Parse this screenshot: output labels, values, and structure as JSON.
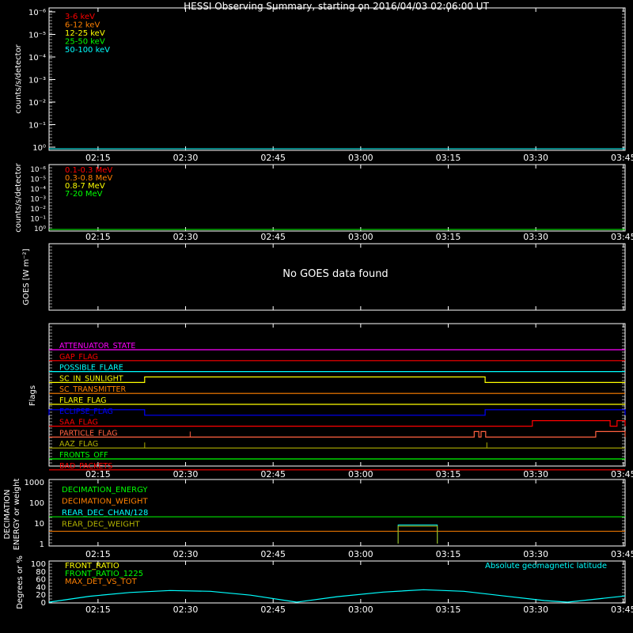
{
  "title": "HESSI Observing Summary, starting on 2016/04/03 02:06:00 UT",
  "time_ticks": [
    "02:15",
    "02:30",
    "02:45",
    "03:00",
    "03:15",
    "03:30",
    "03:45"
  ],
  "colors": {
    "red": "#ff0000",
    "orange": "#ff8000",
    "yellow": "#ffff00",
    "green": "#00ff00",
    "cyan": "#00ffff",
    "magenta": "#ff00ff",
    "blue": "#0000ff",
    "white": "#ffffff",
    "olive": "#b0b000",
    "lightorange": "#ff6040"
  },
  "chart_data": [
    {
      "type": "line",
      "id": "lightcurve-low",
      "ylabel": "counts/s/detector",
      "ytick_labels": [
        "10⁰",
        "10⁻¹",
        "10⁻²",
        "10⁻³",
        "10⁻⁴",
        "10⁻⁵",
        "10⁻⁶"
      ],
      "log_scale": true,
      "series": [
        {
          "name": "3-6 keV",
          "color": "red",
          "values": []
        },
        {
          "name": "6-12 keV",
          "color": "orange",
          "values": []
        },
        {
          "name": "12-25 keV",
          "color": "yellow",
          "values": []
        },
        {
          "name": "25-50 keV",
          "color": "green",
          "values": []
        },
        {
          "name": "50-100 keV",
          "color": "cyan",
          "values": []
        }
      ]
    },
    {
      "type": "line",
      "id": "lightcurve-high",
      "ylabel": "counts/s/detector",
      "ytick_labels": [
        "10⁰",
        "10⁻¹",
        "10⁻²",
        "10⁻³",
        "10⁻⁴",
        "10⁻⁵",
        "10⁻⁶"
      ],
      "log_scale": true,
      "series": [
        {
          "name": "0.1-0.3 MeV",
          "color": "red",
          "values": []
        },
        {
          "name": "0.3-0.8 MeV",
          "color": "orange",
          "values": []
        },
        {
          "name": "0.8-7 MeV",
          "color": "yellow",
          "values": []
        },
        {
          "name": "7-20 MeV",
          "color": "green",
          "values": []
        }
      ]
    },
    {
      "type": "line",
      "id": "goes",
      "ylabel": "GOES [W m⁻²]",
      "message": "No GOES data found"
    },
    {
      "type": "line",
      "id": "flags",
      "ylabel": "Flags",
      "series": [
        {
          "name": "ATTENUATOR_STATE",
          "color": "magenta"
        },
        {
          "name": "GAP_FLAG",
          "color": "red"
        },
        {
          "name": "POSSIBLE_FLARE",
          "color": "cyan"
        },
        {
          "name": "SC_IN_SUNLIGHT",
          "color": "yellow",
          "on": [
            [
              0.166,
              0.757
            ]
          ]
        },
        {
          "name": "SC_TRANSMITTER",
          "color": "orange"
        },
        {
          "name": "FLARE_FLAG",
          "color": "yellow"
        },
        {
          "name": "ECLIPSE_FLAG",
          "color": "blue",
          "on": [
            [
              0.0,
              0.166
            ],
            [
              0.757,
              1.0
            ]
          ]
        },
        {
          "name": "SAA_FLAG",
          "color": "red",
          "on": [
            [
              0.839,
              0.974
            ],
            [
              0.986,
              1.0
            ]
          ]
        },
        {
          "name": "PARTICLE_FLAG",
          "color": "lightorange",
          "on": [
            [
              0.738,
              0.746
            ],
            [
              0.75,
              0.758
            ],
            [
              0.949,
              1.0
            ]
          ],
          "spikes": [
            0.245
          ]
        },
        {
          "name": "AAZ_FLAG",
          "color": "olive",
          "spikes": [
            0.166,
            0.76
          ]
        },
        {
          "name": "FRONTS_OFF",
          "color": "green"
        },
        {
          "name": "BAD_PACKETS",
          "color": "red"
        }
      ]
    },
    {
      "type": "line",
      "id": "decimation",
      "ylabel": "DECIMATION ENERGY or weight",
      "ytick_labels": [
        "1",
        "10",
        "100",
        "1000"
      ],
      "log_scale": true,
      "series": [
        {
          "name": "DECIMATION_ENERGY",
          "color": "green",
          "values": [
            [
              0,
              20
            ],
            [
              1,
              20
            ]
          ]
        },
        {
          "name": "DECIMATION_WEIGHT",
          "color": "orange",
          "values": [
            [
              0,
              4
            ],
            [
              1,
              4
            ]
          ]
        },
        {
          "name": "REAR_DEC_CHAN/128",
          "color": "cyan",
          "box": [
            0.606,
            0.674,
            1,
            8
          ]
        },
        {
          "name": "REAR_DEC_WEIGHT",
          "color": "olive",
          "box": [
            0.606,
            0.674,
            1,
            7
          ]
        }
      ]
    },
    {
      "type": "line",
      "id": "ratio",
      "ylabel": "Degrees or %",
      "ytick_labels": [
        "0",
        "20",
        "40",
        "60",
        "80",
        "100"
      ],
      "ylim": [
        0,
        100
      ],
      "annotation": "Absolute geomagnetic latitude",
      "series": [
        {
          "name": "FRONT_RATIO",
          "color": "yellow",
          "values": []
        },
        {
          "name": "FRONT_RATIO_1225",
          "color": "green",
          "values": []
        },
        {
          "name": "MAX_DET_VS_TOT",
          "color": "orange",
          "values": []
        },
        {
          "name": "Absolute geomagnetic latitude",
          "color": "cyan",
          "values": [
            [
              0,
              0
            ],
            [
              0.07,
              15
            ],
            [
              0.14,
              25
            ],
            [
              0.21,
              30
            ],
            [
              0.28,
              28
            ],
            [
              0.35,
              18
            ],
            [
              0.43,
              0
            ],
            [
              0.5,
              14
            ],
            [
              0.58,
              26
            ],
            [
              0.65,
              32
            ],
            [
              0.72,
              28
            ],
            [
              0.79,
              16
            ],
            [
              0.86,
              4
            ],
            [
              0.9,
              0
            ],
            [
              0.95,
              8
            ],
            [
              1,
              16
            ]
          ]
        }
      ]
    }
  ]
}
